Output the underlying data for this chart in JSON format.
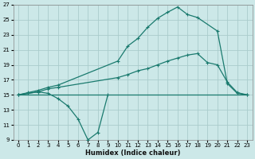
{
  "xlabel": "Humidex (Indice chaleur)",
  "background_color": "#cce8e8",
  "grid_color": "#aacccc",
  "line_color": "#1a7a6e",
  "xlim": [
    -0.5,
    23.5
  ],
  "ylim": [
    9,
    27
  ],
  "xticks": [
    0,
    1,
    2,
    3,
    4,
    5,
    6,
    7,
    8,
    9,
    10,
    11,
    12,
    13,
    14,
    15,
    16,
    17,
    18,
    19,
    20,
    21,
    22,
    23
  ],
  "yticks": [
    9,
    11,
    13,
    15,
    17,
    19,
    21,
    23,
    25,
    27
  ],
  "curve1_x": [
    0,
    1,
    2,
    3,
    4,
    10,
    11,
    12,
    13,
    14,
    15,
    16,
    17,
    18,
    20,
    21,
    22,
    23
  ],
  "curve1_y": [
    15,
    15.3,
    15.6,
    16.0,
    16.3,
    19.5,
    21.5,
    22.5,
    24.0,
    25.2,
    26.0,
    26.7,
    25.7,
    25.3,
    23.5,
    16.5,
    15.2,
    15.0
  ],
  "curve2_x": [
    0,
    1,
    2,
    3,
    4,
    10,
    11,
    12,
    13,
    14,
    15,
    16,
    17,
    18,
    19,
    20,
    21,
    22,
    23
  ],
  "curve2_y": [
    15,
    15.2,
    15.4,
    15.8,
    16.0,
    17.3,
    17.7,
    18.2,
    18.5,
    19.0,
    19.5,
    19.9,
    20.3,
    20.5,
    19.3,
    19.0,
    16.7,
    15.3,
    15.0
  ],
  "curve3_x": [
    0,
    1,
    2,
    3,
    4,
    5,
    6,
    7,
    8,
    9
  ],
  "curve3_y": [
    15,
    15.2,
    15.4,
    15.2,
    14.5,
    13.5,
    11.8,
    9.0,
    10.0,
    15.0
  ],
  "flat_line_x": [
    0,
    23
  ],
  "flat_line_y": [
    15,
    15
  ]
}
